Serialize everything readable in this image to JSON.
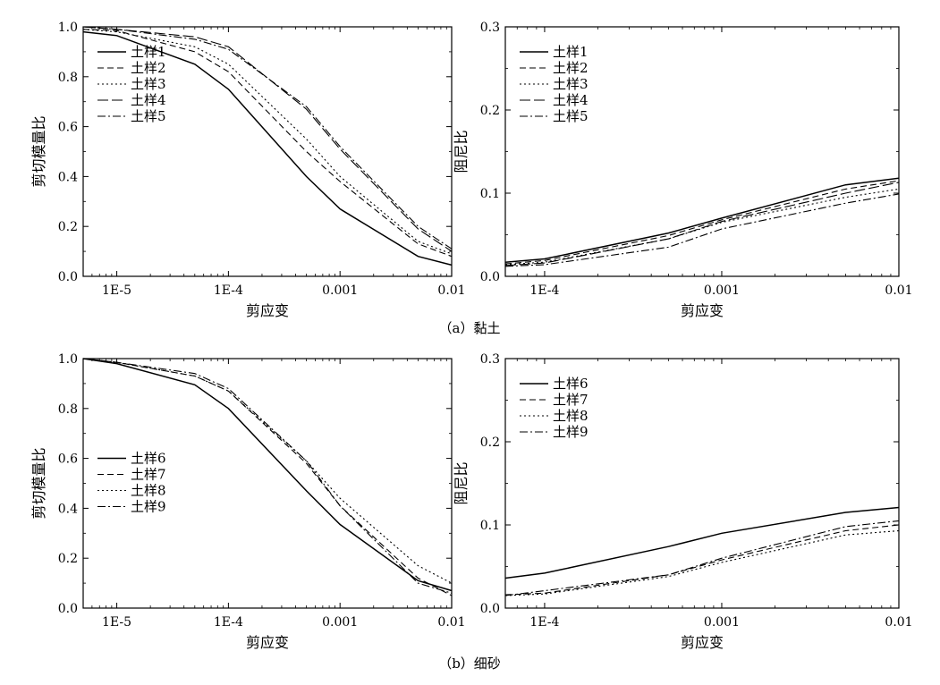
{
  "captions": [
    "（a）黏土",
    "（b）细砂"
  ],
  "chart_data": [
    {
      "type": "line",
      "xlabel": "剪应变",
      "ylabel": "剪切模量比",
      "xscale": "log",
      "xlim": [
        5e-06,
        0.01
      ],
      "ylim": [
        0,
        1.0
      ],
      "xticks": [
        1e-05,
        0.0001,
        0.001,
        0.01
      ],
      "xtick_labels": [
        "1E-5",
        "1E-4",
        "0.001",
        "0.01"
      ],
      "yticks": [
        0,
        0.2,
        0.4,
        0.6,
        0.8,
        1.0
      ],
      "ytick_labels": [
        "0.0",
        "0.2",
        "0.4",
        "0.6",
        "0.8",
        "1.0"
      ],
      "legend": "upper-left",
      "x": [
        5e-06,
        1e-05,
        5e-05,
        0.0001,
        0.0005,
        0.001,
        0.005,
        0.01
      ],
      "series": [
        {
          "name": "土样1",
          "dash": "solid",
          "values": [
            0.98,
            0.965,
            0.85,
            0.75,
            0.4,
            0.27,
            0.08,
            0.045
          ]
        },
        {
          "name": "土样2",
          "dash": "dash",
          "values": [
            0.99,
            0.985,
            0.9,
            0.82,
            0.5,
            0.38,
            0.13,
            0.08
          ]
        },
        {
          "name": "土样3",
          "dash": "dot",
          "values": [
            0.99,
            0.98,
            0.92,
            0.85,
            0.55,
            0.4,
            0.14,
            0.09
          ]
        },
        {
          "name": "土样4",
          "dash": "longdash",
          "values": [
            1.0,
            0.99,
            0.96,
            0.92,
            0.67,
            0.51,
            0.19,
            0.1
          ]
        },
        {
          "name": "土样5",
          "dash": "dashdot",
          "values": [
            1.0,
            0.99,
            0.95,
            0.91,
            0.68,
            0.52,
            0.2,
            0.11
          ]
        }
      ]
    },
    {
      "type": "line",
      "xlabel": "剪应变",
      "ylabel": "阻尼比",
      "xscale": "log",
      "xlim": [
        6e-05,
        0.01
      ],
      "ylim": [
        0,
        0.3
      ],
      "xticks": [
        0.0001,
        0.001,
        0.01
      ],
      "xtick_labels": [
        "1E-4",
        "0.001",
        "0.01"
      ],
      "yticks": [
        0,
        0.1,
        0.2,
        0.3
      ],
      "ytick_labels": [
        "0.0",
        "0.1",
        "0.2",
        "0.3"
      ],
      "legend": "upper-left",
      "x": [
        6e-05,
        0.0001,
        0.0005,
        0.001,
        0.005,
        0.01
      ],
      "series": [
        {
          "name": "土样1",
          "dash": "solid",
          "values": [
            0.017,
            0.021,
            0.052,
            0.07,
            0.11,
            0.118
          ]
        },
        {
          "name": "土样2",
          "dash": "dash",
          "values": [
            0.015,
            0.019,
            0.049,
            0.068,
            0.105,
            0.115
          ]
        },
        {
          "name": "土样3",
          "dash": "dot",
          "values": [
            0.014,
            0.017,
            0.045,
            0.065,
            0.095,
            0.105
          ]
        },
        {
          "name": "土样4",
          "dash": "longdash",
          "values": [
            0.013,
            0.016,
            0.045,
            0.066,
            0.1,
            0.113
          ]
        },
        {
          "name": "土样5",
          "dash": "dashdot",
          "values": [
            0.012,
            0.014,
            0.035,
            0.057,
            0.088,
            0.099
          ]
        }
      ]
    },
    {
      "type": "line",
      "xlabel": "剪应变",
      "ylabel": "剪切模量比",
      "xscale": "log",
      "xlim": [
        5e-06,
        0.01
      ],
      "ylim": [
        0,
        1.0
      ],
      "xticks": [
        1e-05,
        0.0001,
        0.001,
        0.01
      ],
      "xtick_labels": [
        "1E-5",
        "1E-4",
        "0.001",
        "0.01"
      ],
      "yticks": [
        0,
        0.2,
        0.4,
        0.6,
        0.8,
        1.0
      ],
      "ytick_labels": [
        "0.0",
        "0.2",
        "0.4",
        "0.6",
        "0.8",
        "1.0"
      ],
      "legend": "center-left",
      "x": [
        5e-06,
        1e-05,
        5e-05,
        0.0001,
        0.0005,
        0.001,
        0.005,
        0.01
      ],
      "series": [
        {
          "name": "土样6",
          "dash": "solid",
          "values": [
            1.0,
            0.98,
            0.895,
            0.8,
            0.47,
            0.335,
            0.11,
            0.07
          ]
        },
        {
          "name": "土样7",
          "dash": "dash",
          "values": [
            1.0,
            0.985,
            0.93,
            0.87,
            0.58,
            0.41,
            0.12,
            0.05
          ]
        },
        {
          "name": "土样8",
          "dash": "dot",
          "values": [
            1.0,
            0.985,
            0.93,
            0.87,
            0.59,
            0.44,
            0.17,
            0.1
          ]
        },
        {
          "name": "土样9",
          "dash": "dashdot",
          "values": [
            1.0,
            0.985,
            0.94,
            0.88,
            0.59,
            0.41,
            0.1,
            0.06
          ]
        }
      ]
    },
    {
      "type": "line",
      "xlabel": "剪应变",
      "ylabel": "阻尼比",
      "xscale": "log",
      "xlim": [
        6e-05,
        0.01
      ],
      "ylim": [
        0,
        0.3
      ],
      "xticks": [
        0.0001,
        0.001,
        0.01
      ],
      "xtick_labels": [
        "1E-4",
        "0.001",
        "0.01"
      ],
      "yticks": [
        0,
        0.1,
        0.2,
        0.3
      ],
      "ytick_labels": [
        "0.0",
        "0.1",
        "0.2",
        "0.3"
      ],
      "legend": "upper-left",
      "x": [
        6e-05,
        0.0001,
        0.0005,
        0.001,
        0.005,
        0.01
      ],
      "series": [
        {
          "name": "土样6",
          "dash": "solid",
          "values": [
            0.036,
            0.042,
            0.074,
            0.09,
            0.115,
            0.121
          ]
        },
        {
          "name": "土样7",
          "dash": "dash",
          "values": [
            0.016,
            0.018,
            0.04,
            0.058,
            0.093,
            0.1
          ]
        },
        {
          "name": "土样8",
          "dash": "dot",
          "values": [
            0.015,
            0.017,
            0.038,
            0.055,
            0.088,
            0.093
          ]
        },
        {
          "name": "土样9",
          "dash": "dashdot",
          "values": [
            0.015,
            0.021,
            0.04,
            0.06,
            0.098,
            0.105
          ]
        }
      ]
    }
  ]
}
